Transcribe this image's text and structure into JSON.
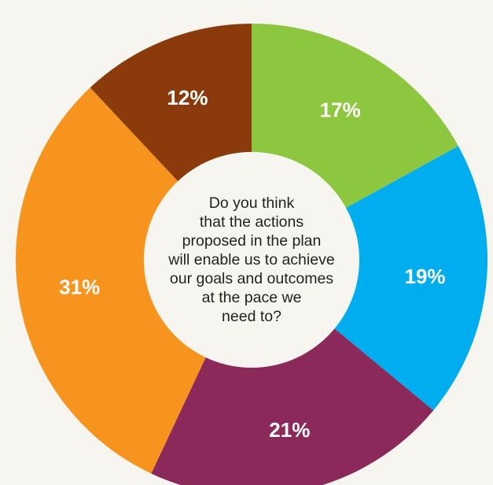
{
  "chart_data": {
    "type": "pie",
    "categories": [
      "",
      "",
      "",
      "",
      ""
    ],
    "values": [
      17,
      19,
      21,
      31,
      12
    ],
    "value_labels": [
      "17%",
      "19%",
      "21%",
      "31%",
      "12%"
    ],
    "colors": [
      "#8dc63f",
      "#00aeef",
      "#8b2a5a",
      "#f7941d",
      "#8b3a0c"
    ],
    "start_angle_deg": 0,
    "direction": "clockwise",
    "donut": true,
    "center_text": [
      "Do you think",
      "that the actions",
      "proposed in the plan",
      "will enable us to achieve",
      "our goals and outcomes",
      "at the pace we",
      "need to?"
    ],
    "title": "",
    "legend": "none"
  },
  "colors": {
    "background": "#f7f5f0",
    "center_fill": "#f7f5f0",
    "label_text": "#ffffff",
    "center_text": "#222222"
  }
}
